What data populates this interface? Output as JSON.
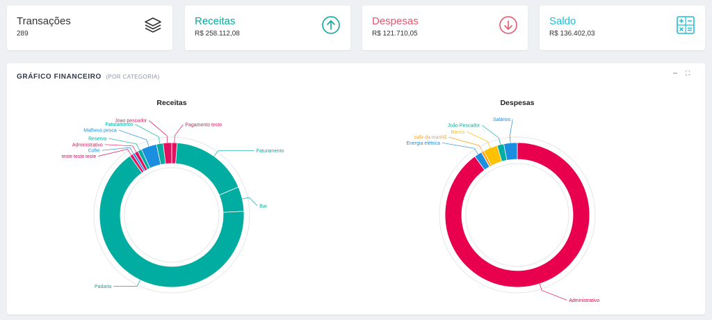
{
  "cards": [
    {
      "title": "Transações",
      "value": "289",
      "color": "#333333",
      "icon": "layers-icon"
    },
    {
      "title": "Receitas",
      "value": "R$ 258.112,08",
      "color": "#0aa89e",
      "icon": "arrow-up-circle-icon"
    },
    {
      "title": "Despesas",
      "value": "R$ 121.710,05",
      "color": "#e8556f",
      "icon": "arrow-down-circle-icon"
    },
    {
      "title": "Saldo",
      "value": "R$ 136.402,03",
      "color": "#1dbfd6",
      "icon": "calculator-icon"
    }
  ],
  "panel": {
    "title": "GRÁFICO FINANCEIRO",
    "subtitle": "(POR CATEGORIA)",
    "minimize_label": "–",
    "expand_label": "⛶"
  },
  "chart_data": [
    {
      "type": "pie",
      "title": "Receitas",
      "labels": [
        "Pagamento teste",
        "Faturamento",
        "Bar",
        "Padaria",
        "teste teste teste",
        "Cofre",
        "Administrativo",
        "Reserva",
        "Matheus pesca",
        "Faturamento",
        "Joao pescador"
      ],
      "values": [
        1.2,
        17.5,
        5.5,
        66.0,
        0.7,
        0.5,
        0.8,
        0.9,
        3.5,
        1.5,
        1.9
      ],
      "colors": [
        "#e0115f",
        "#00ada0",
        "#00ada0",
        "#00ada0",
        "#e0115f",
        "#1b8ee0",
        "#e0115f",
        "#00ada0",
        "#1b8ee0",
        "#00ada0",
        "#e0115f"
      ]
    },
    {
      "type": "pie",
      "title": "Despesas",
      "labels": [
        "Administrativo",
        "Energia elétrica",
        "cafe da manhã",
        "Banco",
        "João Pescador",
        "Salários"
      ],
      "values": [
        90.0,
        1.7,
        0.6,
        3.2,
        1.5,
        3.0
      ],
      "colors": [
        "#e8004f",
        "#1b8ee0",
        "#ff9f1c",
        "#ffc000",
        "#00ada0",
        "#1b8ee0"
      ]
    }
  ]
}
